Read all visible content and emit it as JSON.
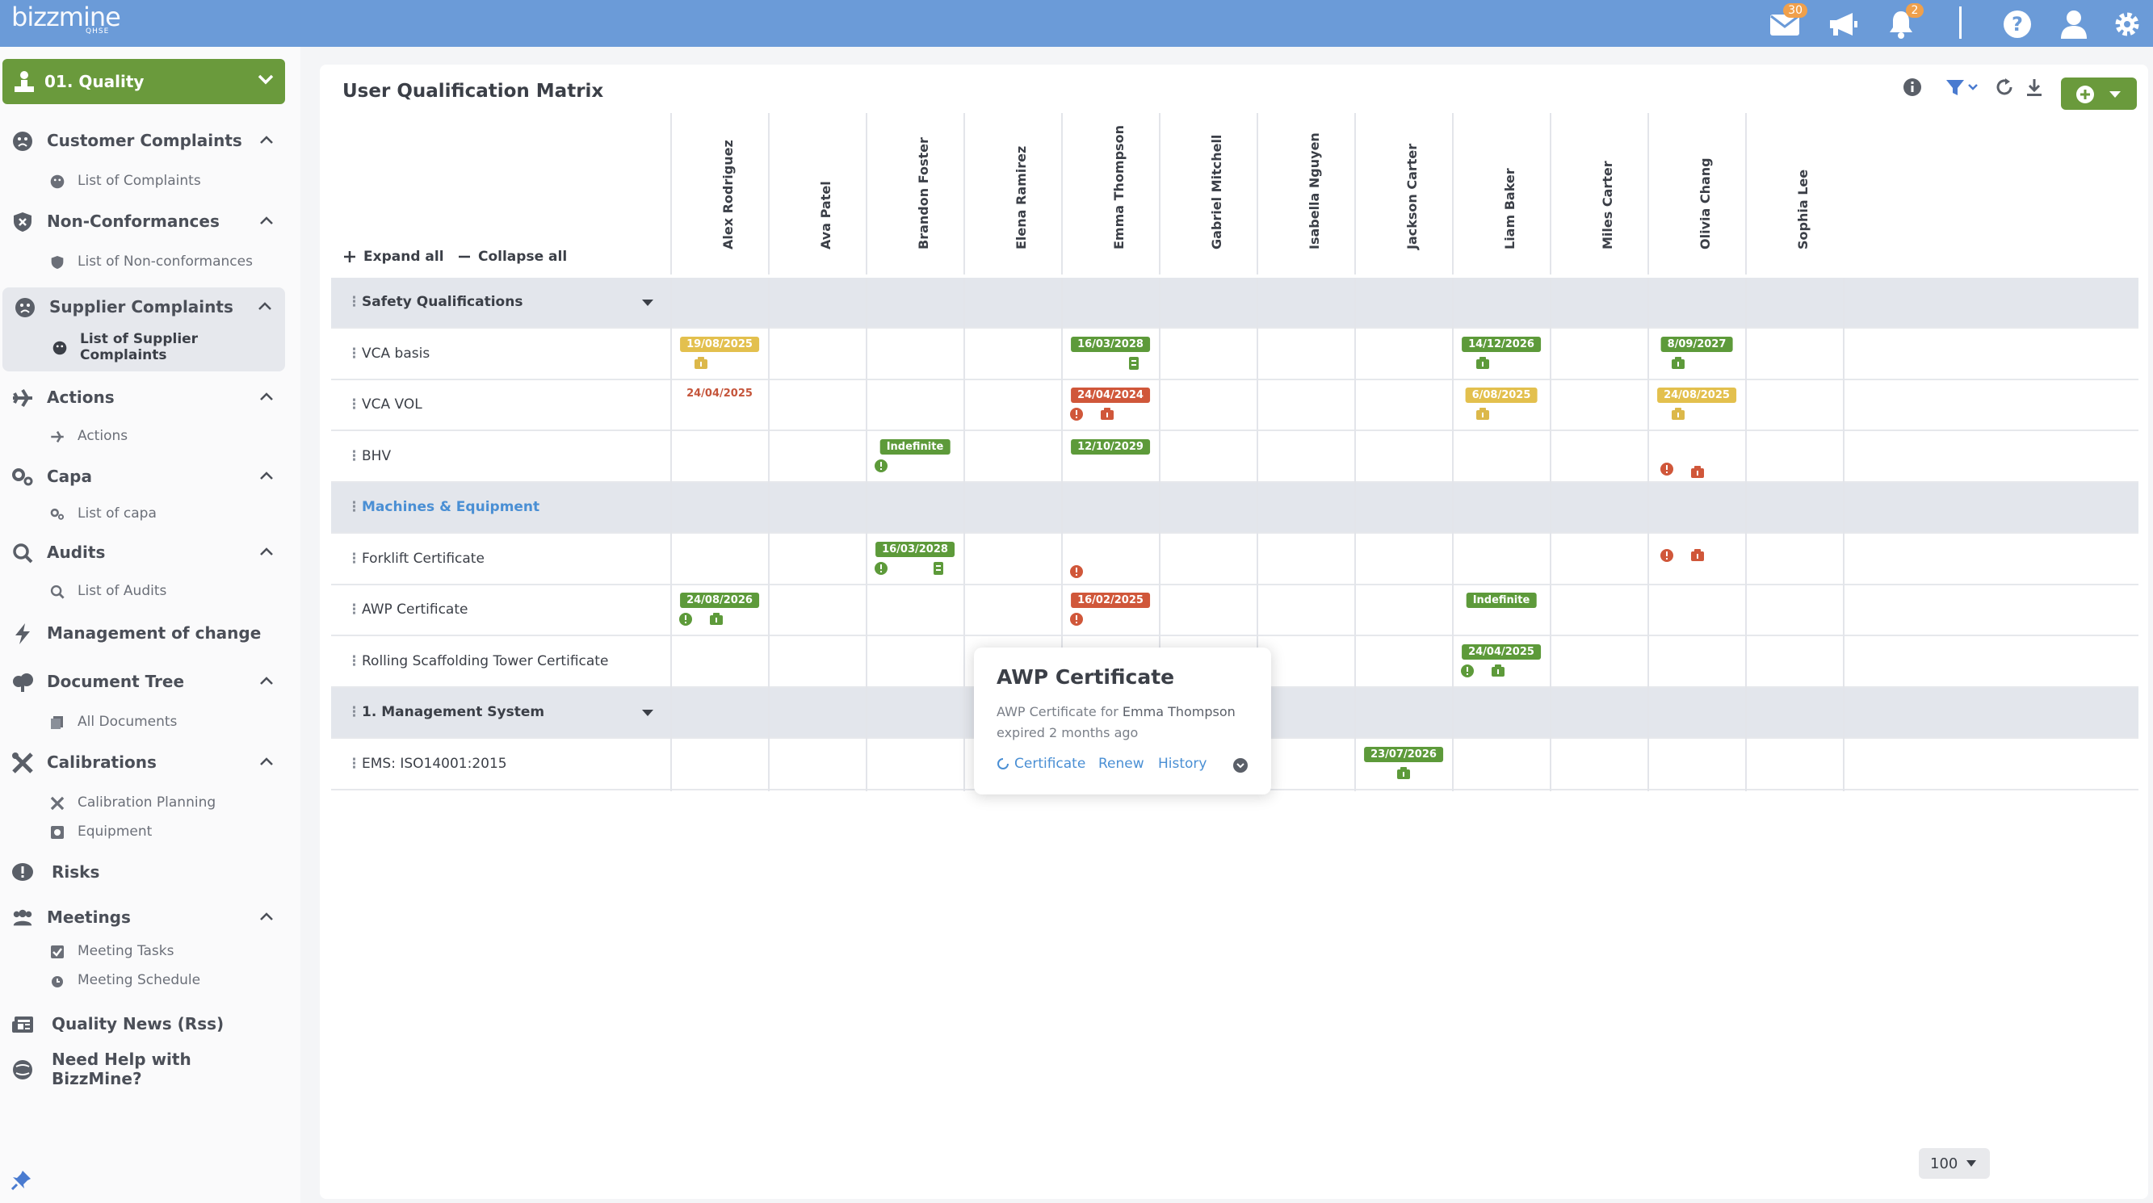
{
  "topbar": {
    "logo": "bizzmine",
    "logo_sub": "QHSE",
    "mail_count": "30",
    "notification_count": "2",
    "accent": "#6b9bd8"
  },
  "sidebar": {
    "module": "01. Quality",
    "groups": [
      {
        "label": "Customer Complaints",
        "items": [
          "List of Complaints"
        ]
      },
      {
        "label": "Non-Conformances",
        "items": [
          "List of Non-conformances"
        ]
      },
      {
        "label": "Supplier Complaints",
        "items": [
          "List of Supplier Complaints"
        ]
      },
      {
        "label": "Actions",
        "items": [
          "Actions"
        ]
      },
      {
        "label": "Capa",
        "items": [
          "List of capa"
        ]
      },
      {
        "label": "Audits",
        "items": [
          "List of Audits"
        ]
      },
      {
        "label": "Management of change",
        "items": []
      },
      {
        "label": "Document Tree",
        "items": [
          "All Documents"
        ]
      },
      {
        "label": "Calibrations",
        "items": [
          "Calibration Planning",
          "Equipment"
        ]
      },
      {
        "label": "Risks",
        "items": []
      },
      {
        "label": "Meetings",
        "items": [
          "Meeting Tasks",
          "Meeting Schedule"
        ]
      },
      {
        "label": "Quality News (Rss)",
        "items": []
      },
      {
        "label": "Need Help with BizzMine?",
        "items": []
      }
    ]
  },
  "main": {
    "title": "User Qualification Matrix",
    "expand_all": "Expand all",
    "collapse_all": "Collapse all",
    "users": [
      "Alex Rodriguez",
      "Ava Patel",
      "Brandon Foster",
      "Elena Ramirez",
      "Emma Thompson",
      "Gabriel Mitchell",
      "Isabella Nguyen",
      "Jackson Carter",
      "Liam Baker",
      "Miles Carter",
      "Olivia Chang",
      "Sophia Lee"
    ],
    "rows": [
      {
        "label": "Safety Qualifications",
        "group": true
      },
      {
        "label": "VCA basis"
      },
      {
        "label": "VCA VOL"
      },
      {
        "label": "BHV"
      },
      {
        "label": "Machines & Equipment",
        "group": true
      },
      {
        "label": "Forklift Certificate"
      },
      {
        "label": "AWP Certificate"
      },
      {
        "label": "Rolling Scaffolding Tower Certificate"
      },
      {
        "label": "1. Management System",
        "group": true
      },
      {
        "label": "EMS: ISO14001:2015"
      }
    ],
    "cells": [
      {
        "row": 1,
        "col": 0,
        "date": "19/08/2025",
        "status": "yellow",
        "icons": [
          "cert-yellow"
        ]
      },
      {
        "row": 1,
        "col": 4,
        "date": "16/03/2028",
        "status": "green",
        "icons": [
          "doc-green-right"
        ]
      },
      {
        "row": 1,
        "col": 8,
        "date": "14/12/2026",
        "status": "green",
        "icons": [
          "cert-green"
        ]
      },
      {
        "row": 1,
        "col": 10,
        "date": "8/09/2027",
        "status": "green",
        "icons": [
          "cert-green"
        ]
      },
      {
        "row": 2,
        "col": 0,
        "date": "24/04/2025",
        "status": "redtext",
        "icons": []
      },
      {
        "row": 2,
        "col": 4,
        "date": "24/04/2024",
        "status": "red",
        "icons": [
          "alert",
          "cert-red"
        ]
      },
      {
        "row": 2,
        "col": 8,
        "date": "6/08/2025",
        "status": "yellow",
        "icons": [
          "cert-yellow"
        ]
      },
      {
        "row": 2,
        "col": 10,
        "date": "24/08/2025",
        "status": "yellow",
        "icons": [
          "cert-yellow"
        ]
      },
      {
        "row": 3,
        "col": 2,
        "date": "Indefinite",
        "status": "green",
        "icons": [
          "info-green"
        ]
      },
      {
        "row": 3,
        "col": 4,
        "date": "12/10/2029",
        "status": "green",
        "icons": []
      },
      {
        "row": 3,
        "col": 10,
        "date": "",
        "status": "",
        "icons": [
          "alert-low",
          "cert-red-low"
        ]
      },
      {
        "row": 5,
        "col": 2,
        "date": "16/03/2028",
        "status": "green",
        "icons": [
          "info-green",
          "doc-green-right"
        ]
      },
      {
        "row": 5,
        "col": 4,
        "date": "",
        "status": "",
        "icons": [
          "alert-low"
        ]
      },
      {
        "row": 5,
        "col": 10,
        "date": "",
        "status": "",
        "icons": [
          "alert-mid",
          "cert-red-mid"
        ]
      },
      {
        "row": 6,
        "col": 0,
        "date": "24/08/2026",
        "status": "green",
        "icons": [
          "info-green",
          "cert-green"
        ]
      },
      {
        "row": 6,
        "col": 4,
        "date": "16/02/2025",
        "status": "red",
        "icons": [
          "alert"
        ]
      },
      {
        "row": 6,
        "col": 8,
        "date": "Indefinite",
        "status": "green",
        "icons": []
      },
      {
        "row": 7,
        "col": 8,
        "date": "24/04/2025",
        "status": "green",
        "icons": [
          "info-green",
          "cert-green"
        ]
      },
      {
        "row": 9,
        "col": 7,
        "date": "23/07/2026",
        "status": "green",
        "icons": [
          "cert-green-center"
        ]
      }
    ],
    "popup": {
      "title": "AWP Certificate",
      "line1_prefix": "AWP Certificate for",
      "line1_name": "Emma Thompson",
      "line2": "expired 2 months ago",
      "actions": [
        "Certificate",
        "Renew",
        "History"
      ]
    },
    "page_size": "100"
  }
}
